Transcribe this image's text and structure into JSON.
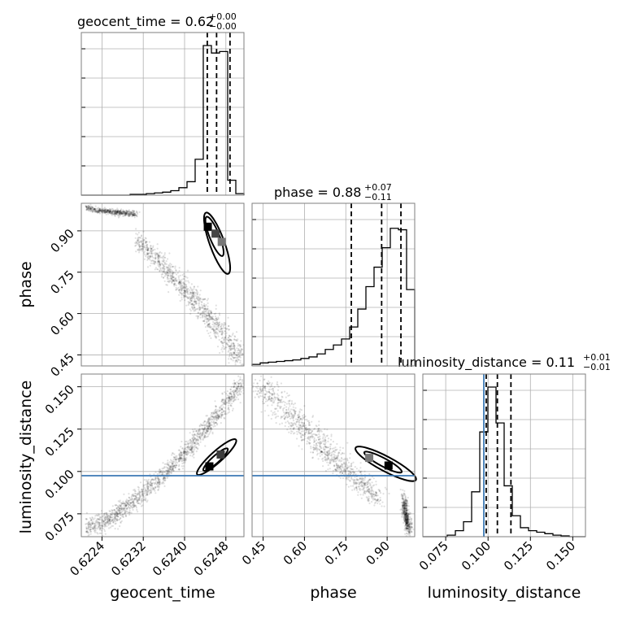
{
  "chart_data": {
    "type": "corner",
    "parameters": [
      {
        "name": "geocent_time",
        "label": "geocent_time",
        "title": {
          "text": "geocent_time = 0.62",
          "sup": "+0.00",
          "sub": "−0.00"
        },
        "range": [
          0.622,
          0.62515
        ],
        "ticks": [
          "0.6224",
          "0.6232",
          "0.6240",
          "0.6248"
        ],
        "tick_values": [
          0.6224,
          0.6232,
          0.624,
          0.6248
        ],
        "quantiles": [
          0.62444,
          0.62462,
          0.62488
        ],
        "hist": {
          "edges_start": 0.622,
          "bin_width": 0.0001575,
          "counts": [
            0,
            0,
            0,
            0,
            0,
            0,
            0.005,
            0.005,
            0.01,
            0.015,
            0.02,
            0.03,
            0.05,
            0.09,
            0.24,
            1.0,
            0.95,
            0.96,
            0.1,
            0.01
          ]
        },
        "truth": null
      },
      {
        "name": "phase",
        "label": "phase",
        "title": {
          "text": "phase = 0.88",
          "sup": "+0.07",
          "sub": "−0.11"
        },
        "range": [
          0.41,
          1.0
        ],
        "ticks": [
          "0.45",
          "0.60",
          "0.75",
          "0.90"
        ],
        "tick_values": [
          0.45,
          0.6,
          0.75,
          0.9
        ],
        "quantiles": [
          0.77,
          0.88,
          0.95
        ],
        "hist": {
          "edges_start": 0.41,
          "bin_width": 0.0295,
          "counts": [
            0.01,
            0.02,
            0.025,
            0.03,
            0.035,
            0.04,
            0.05,
            0.06,
            0.08,
            0.11,
            0.14,
            0.18,
            0.26,
            0.38,
            0.53,
            0.66,
            0.79,
            0.92,
            0.91,
            0.51
          ]
        },
        "truth": null
      },
      {
        "name": "luminosity_distance",
        "label": "luminosity_distance",
        "title": {
          "text": "luminosity_distance = 0.11",
          "sup": "+0.01",
          "sub": "−0.01"
        },
        "range": [
          0.0615,
          0.1575
        ],
        "ticks": [
          "0.075",
          "0.100",
          "0.125",
          "0.150"
        ],
        "tick_values": [
          0.075,
          0.1,
          0.125,
          0.15
        ],
        "quantiles": [
          0.0989,
          0.1055,
          0.1135
        ],
        "hist": {
          "edges_start": 0.0615,
          "bin_width": 0.0048,
          "counts": [
            0,
            0,
            0,
            0.01,
            0.04,
            0.1,
            0.3,
            0.7,
            1.0,
            0.76,
            0.34,
            0.14,
            0.06,
            0.04,
            0.03,
            0.02,
            0.01,
            0.005,
            0,
            0
          ]
        },
        "truth": 0.0975
      }
    ],
    "blob_samples": [
      {
        "x": 0.62445,
        "y": 0.915,
        "w": 4e-05,
        "h": 0.02,
        "shade": 0.0
      },
      {
        "x": 0.6246,
        "y": 0.89,
        "w": 4e-05,
        "h": 0.025,
        "shade": 0.35
      },
      {
        "x": 0.62472,
        "y": 0.86,
        "w": 5e-05,
        "h": 0.03,
        "shade": 0.6
      }
    ]
  }
}
